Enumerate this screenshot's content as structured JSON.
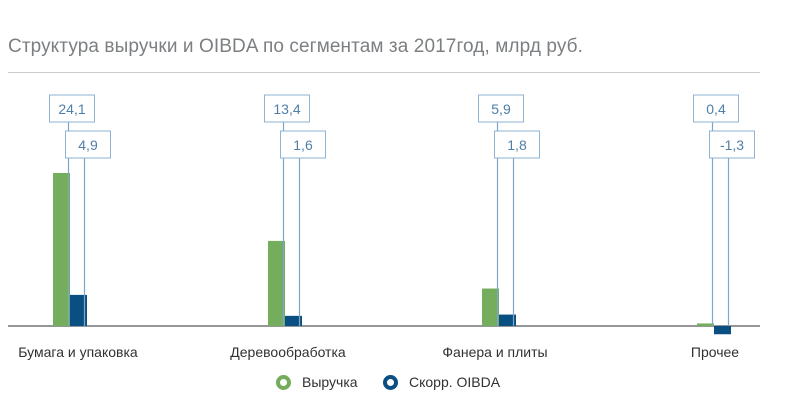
{
  "chart_data": {
    "type": "bar",
    "title": "Структура выручки и OIBDA по сегментам за 2017год, млрд руб.",
    "categories": [
      "Бумага и упаковка",
      "Деревообработка",
      "Фанера и плиты",
      "Прочее"
    ],
    "series": [
      {
        "name": "Выручка",
        "values": [
          24.1,
          13.4,
          5.9,
          0.4
        ],
        "labels": [
          "24,1",
          "13,4",
          "5,9",
          "0,4"
        ],
        "color": "#74ad5c"
      },
      {
        "name": "Скорр. OIBDA",
        "values": [
          4.9,
          1.6,
          1.8,
          -1.3
        ],
        "labels": [
          "4,9",
          "1,6",
          "1,8",
          "-1,3"
        ],
        "color": "#0a4f82"
      }
    ],
    "colors": {
      "axis": "#2b2d2f",
      "leader": "#7ea6c8",
      "label_border": "#8fb3d2",
      "label_text": "#4f7fa8"
    }
  }
}
